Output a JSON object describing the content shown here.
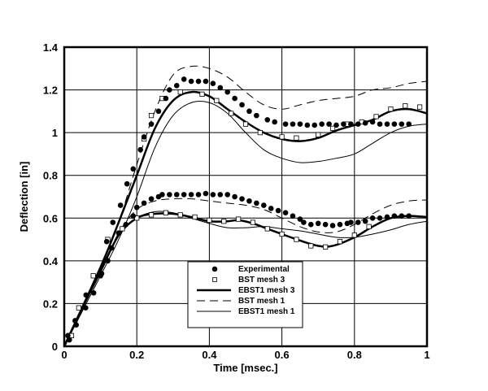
{
  "chart_data": {
    "type": "line",
    "title": "",
    "xlabel": "Time [msec.]",
    "ylabel": "Deflection [in]",
    "xlim": [
      0,
      1
    ],
    "ylim": [
      0,
      1.4
    ],
    "xticks": [
      "0",
      "0.2",
      "0.4",
      "0.6",
      "0.8",
      "1"
    ],
    "yticks": [
      "0",
      "0.2",
      "0.4",
      "0.6",
      "0.8",
      "1",
      "1.2",
      "1.4"
    ],
    "xtick_values": [
      0,
      0.2,
      0.4,
      0.6,
      0.8,
      1
    ],
    "ytick_values": [
      0,
      0.2,
      0.4,
      0.6,
      0.8,
      1,
      1.2,
      1.4
    ],
    "grid": true,
    "legend_placement": "lower-center",
    "series": [
      {
        "name": "Experimental",
        "style": "filled-circle",
        "curves": [
          [
            [
              0.014,
              0.03
            ],
            [
              0.033,
              0.1
            ],
            [
              0.059,
              0.18
            ],
            [
              0.081,
              0.25
            ],
            [
              0.103,
              0.34
            ],
            [
              0.117,
              0.49
            ],
            [
              0.134,
              0.58
            ],
            [
              0.155,
              0.66
            ],
            [
              0.173,
              0.76
            ],
            [
              0.19,
              0.83
            ],
            [
              0.21,
              0.92
            ],
            [
              0.22,
              0.98
            ],
            [
              0.24,
              1.04
            ],
            [
              0.26,
              1.1
            ],
            [
              0.28,
              1.16
            ],
            [
              0.29,
              1.2
            ],
            [
              0.31,
              1.22
            ],
            [
              0.33,
              1.25
            ],
            [
              0.35,
              1.24
            ],
            [
              0.37,
              1.24
            ],
            [
              0.39,
              1.24
            ],
            [
              0.41,
              1.23
            ],
            [
              0.43,
              1.21
            ],
            [
              0.45,
              1.19
            ],
            [
              0.47,
              1.16
            ],
            [
              0.49,
              1.13
            ],
            [
              0.51,
              1.1
            ],
            [
              0.53,
              1.08
            ],
            [
              0.56,
              1.06
            ],
            [
              0.58,
              1.05
            ],
            [
              0.61,
              1.04
            ],
            [
              0.63,
              1.04
            ],
            [
              0.65,
              1.04
            ],
            [
              0.67,
              1.035
            ],
            [
              0.69,
              1.035
            ],
            [
              0.71,
              1.04
            ],
            [
              0.73,
              1.04
            ],
            [
              0.75,
              1.035
            ],
            [
              0.77,
              1.04
            ],
            [
              0.79,
              1.04
            ],
            [
              0.81,
              1.04
            ],
            [
              0.83,
              1.045
            ],
            [
              0.85,
              1.05
            ],
            [
              0.87,
              1.04
            ],
            [
              0.89,
              1.04
            ],
            [
              0.91,
              1.04
            ],
            [
              0.93,
              1.04
            ],
            [
              0.95,
              1.04
            ]
          ],
          [
            [
              0.01,
              0.05
            ],
            [
              0.03,
              0.12
            ],
            [
              0.06,
              0.24
            ],
            [
              0.1,
              0.33
            ],
            [
              0.12,
              0.4
            ],
            [
              0.13,
              0.46
            ],
            [
              0.15,
              0.53
            ],
            [
              0.17,
              0.57
            ],
            [
              0.19,
              0.61
            ],
            [
              0.2,
              0.65
            ],
            [
              0.22,
              0.67
            ],
            [
              0.24,
              0.69
            ],
            [
              0.26,
              0.7
            ],
            [
              0.27,
              0.71
            ],
            [
              0.29,
              0.71
            ],
            [
              0.31,
              0.71
            ],
            [
              0.33,
              0.71
            ],
            [
              0.35,
              0.71
            ],
            [
              0.37,
              0.71
            ],
            [
              0.39,
              0.715
            ],
            [
              0.41,
              0.71
            ],
            [
              0.43,
              0.71
            ],
            [
              0.45,
              0.71
            ],
            [
              0.47,
              0.7
            ],
            [
              0.49,
              0.69
            ],
            [
              0.51,
              0.68
            ],
            [
              0.53,
              0.67
            ],
            [
              0.55,
              0.66
            ],
            [
              0.57,
              0.645
            ],
            [
              0.59,
              0.635
            ],
            [
              0.61,
              0.625
            ],
            [
              0.63,
              0.61
            ],
            [
              0.65,
              0.595
            ],
            [
              0.66,
              0.58
            ],
            [
              0.68,
              0.57
            ],
            [
              0.7,
              0.575
            ],
            [
              0.72,
              0.57
            ],
            [
              0.74,
              0.565
            ],
            [
              0.76,
              0.57
            ],
            [
              0.78,
              0.575
            ],
            [
              0.79,
              0.58
            ],
            [
              0.81,
              0.58
            ],
            [
              0.83,
              0.585
            ],
            [
              0.85,
              0.6
            ],
            [
              0.87,
              0.6
            ],
            [
              0.89,
              0.605
            ],
            [
              0.91,
              0.61
            ],
            [
              0.93,
              0.61
            ],
            [
              0.95,
              0.61
            ]
          ]
        ]
      },
      {
        "name": "BST mesh 3",
        "style": "open-square",
        "curves": [
          [
            [
              0.22,
              0.97
            ],
            [
              0.24,
              1.08
            ],
            [
              0.27,
              1.16
            ],
            [
              0.32,
              1.19
            ],
            [
              0.38,
              1.18
            ],
            [
              0.42,
              1.15
            ],
            [
              0.46,
              1.09
            ],
            [
              0.5,
              1.04
            ],
            [
              0.54,
              1.0
            ],
            [
              0.6,
              0.98
            ],
            [
              0.64,
              0.975
            ],
            [
              0.7,
              0.99
            ],
            [
              0.74,
              1.02
            ],
            [
              0.78,
              1.04
            ],
            [
              0.82,
              1.05
            ],
            [
              0.86,
              1.075
            ],
            [
              0.9,
              1.11
            ],
            [
              0.94,
              1.125
            ],
            [
              0.98,
              1.12
            ]
          ],
          [
            [
              0.02,
              0.05
            ],
            [
              0.04,
              0.18
            ],
            [
              0.08,
              0.33
            ],
            [
              0.12,
              0.5
            ],
            [
              0.16,
              0.55
            ],
            [
              0.2,
              0.6
            ],
            [
              0.24,
              0.615
            ],
            [
              0.28,
              0.625
            ],
            [
              0.32,
              0.615
            ],
            [
              0.36,
              0.605
            ],
            [
              0.4,
              0.59
            ],
            [
              0.44,
              0.585
            ],
            [
              0.48,
              0.595
            ],
            [
              0.52,
              0.58
            ],
            [
              0.56,
              0.55
            ],
            [
              0.6,
              0.525
            ],
            [
              0.64,
              0.5
            ],
            [
              0.68,
              0.47
            ],
            [
              0.72,
              0.465
            ],
            [
              0.76,
              0.49
            ],
            [
              0.8,
              0.52
            ],
            [
              0.84,
              0.56
            ]
          ]
        ]
      },
      {
        "name": "EBST1 mesh 3",
        "style": "thick-solid",
        "curves": [
          [
            [
              0,
              0
            ],
            [
              0.1,
              0.37
            ],
            [
              0.15,
              0.58
            ],
            [
              0.2,
              0.8
            ],
            [
              0.25,
              1.02
            ],
            [
              0.3,
              1.15
            ],
            [
              0.35,
              1.19
            ],
            [
              0.4,
              1.17
            ],
            [
              0.45,
              1.11
            ],
            [
              0.5,
              1.05
            ],
            [
              0.55,
              1.0
            ],
            [
              0.6,
              0.97
            ],
            [
              0.65,
              0.96
            ],
            [
              0.7,
              0.975
            ],
            [
              0.75,
              1.01
            ],
            [
              0.8,
              1.035
            ],
            [
              0.85,
              1.06
            ],
            [
              0.9,
              1.1
            ],
            [
              0.95,
              1.11
            ],
            [
              1,
              1.09
            ]
          ],
          [
            [
              0,
              0
            ],
            [
              0.05,
              0.18
            ],
            [
              0.1,
              0.35
            ],
            [
              0.15,
              0.52
            ],
            [
              0.2,
              0.6
            ],
            [
              0.25,
              0.62
            ],
            [
              0.3,
              0.62
            ],
            [
              0.35,
              0.605
            ],
            [
              0.4,
              0.585
            ],
            [
              0.45,
              0.585
            ],
            [
              0.48,
              0.59
            ],
            [
              0.52,
              0.575
            ],
            [
              0.56,
              0.55
            ],
            [
              0.6,
              0.525
            ],
            [
              0.65,
              0.495
            ],
            [
              0.7,
              0.47
            ],
            [
              0.74,
              0.47
            ],
            [
              0.8,
              0.51
            ],
            [
              0.85,
              0.56
            ],
            [
              0.9,
              0.6
            ],
            [
              0.95,
              0.61
            ],
            [
              1,
              0.605
            ]
          ]
        ]
      },
      {
        "name": "BST mesh 1",
        "style": "dashed",
        "curves": [
          [
            [
              0,
              0
            ],
            [
              0.1,
              0.37
            ],
            [
              0.15,
              0.58
            ],
            [
              0.2,
              0.85
            ],
            [
              0.25,
              1.1
            ],
            [
              0.3,
              1.27
            ],
            [
              0.35,
              1.31
            ],
            [
              0.4,
              1.3
            ],
            [
              0.45,
              1.26
            ],
            [
              0.5,
              1.19
            ],
            [
              0.55,
              1.13
            ],
            [
              0.6,
              1.11
            ],
            [
              0.65,
              1.13
            ],
            [
              0.7,
              1.15
            ],
            [
              0.75,
              1.16
            ],
            [
              0.8,
              1.17
            ],
            [
              0.85,
              1.2
            ],
            [
              0.9,
              1.21
            ],
            [
              0.95,
              1.23
            ],
            [
              1,
              1.24
            ]
          ],
          [
            [
              0,
              0
            ],
            [
              0.1,
              0.35
            ],
            [
              0.15,
              0.53
            ],
            [
              0.2,
              0.64
            ],
            [
              0.25,
              0.68
            ],
            [
              0.3,
              0.69
            ],
            [
              0.35,
              0.69
            ],
            [
              0.4,
              0.68
            ],
            [
              0.45,
              0.67
            ],
            [
              0.5,
              0.66
            ],
            [
              0.55,
              0.64
            ],
            [
              0.6,
              0.6
            ],
            [
              0.65,
              0.56
            ],
            [
              0.7,
              0.535
            ],
            [
              0.75,
              0.535
            ],
            [
              0.8,
              0.57
            ],
            [
              0.85,
              0.62
            ],
            [
              0.9,
              0.66
            ],
            [
              0.95,
              0.68
            ],
            [
              1,
              0.685
            ]
          ]
        ]
      },
      {
        "name": "EBST1 mesh 1",
        "style": "thin-solid",
        "curves": [
          [
            [
              0,
              0
            ],
            [
              0.1,
              0.33
            ],
            [
              0.15,
              0.5
            ],
            [
              0.2,
              0.7
            ],
            [
              0.25,
              0.93
            ],
            [
              0.3,
              1.08
            ],
            [
              0.35,
              1.14
            ],
            [
              0.4,
              1.14
            ],
            [
              0.45,
              1.09
            ],
            [
              0.5,
              1.0
            ],
            [
              0.55,
              0.92
            ],
            [
              0.6,
              0.88
            ],
            [
              0.65,
              0.86
            ],
            [
              0.7,
              0.865
            ],
            [
              0.75,
              0.88
            ],
            [
              0.8,
              0.9
            ],
            [
              0.85,
              0.95
            ],
            [
              0.9,
              1.0
            ],
            [
              0.95,
              1.03
            ],
            [
              1,
              1.04
            ]
          ],
          [
            [
              0,
              0
            ],
            [
              0.1,
              0.36
            ],
            [
              0.15,
              0.52
            ],
            [
              0.2,
              0.6
            ],
            [
              0.25,
              0.63
            ],
            [
              0.3,
              0.625
            ],
            [
              0.35,
              0.6
            ],
            [
              0.4,
              0.575
            ],
            [
              0.45,
              0.555
            ],
            [
              0.5,
              0.555
            ],
            [
              0.55,
              0.56
            ],
            [
              0.6,
              0.55
            ],
            [
              0.65,
              0.54
            ],
            [
              0.7,
              0.525
            ],
            [
              0.75,
              0.51
            ],
            [
              0.8,
              0.51
            ],
            [
              0.85,
              0.525
            ],
            [
              0.9,
              0.545
            ],
            [
              0.95,
              0.57
            ],
            [
              1,
              0.585
            ]
          ]
        ]
      }
    ]
  }
}
